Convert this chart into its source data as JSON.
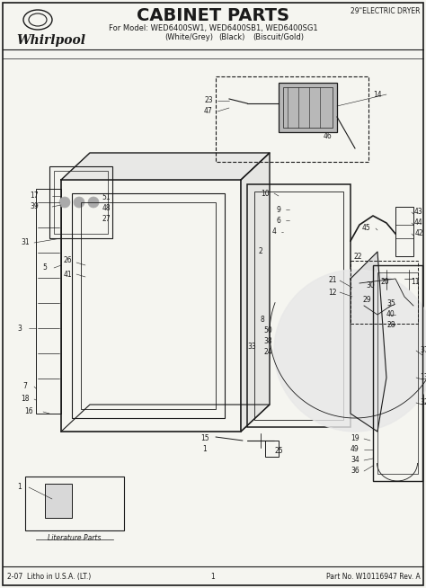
{
  "title": "CABINET PARTS",
  "subtitle_line1": "For Model: WED6400SW1, WED6400SB1, WED6400SG1",
  "subtitle_line2_col1": "(White/Grey)",
  "subtitle_line2_col2": "(Black)",
  "subtitle_line2_col3": "(Biscuit/Gold)",
  "top_right_text": "29\"ELECTRIC DRYER",
  "bottom_left": "2-07  Litho in U.S.A. (LT.)",
  "bottom_center": "1",
  "bottom_right": "Part No. W10116947 Rev. A",
  "logo_text": "Whirlpool",
  "literature_parts_label": "Literature Parts",
  "bg_color": "#f5f5f0",
  "line_color": "#1a1a1a",
  "fig_width": 4.74,
  "fig_height": 6.54,
  "dpi": 100
}
